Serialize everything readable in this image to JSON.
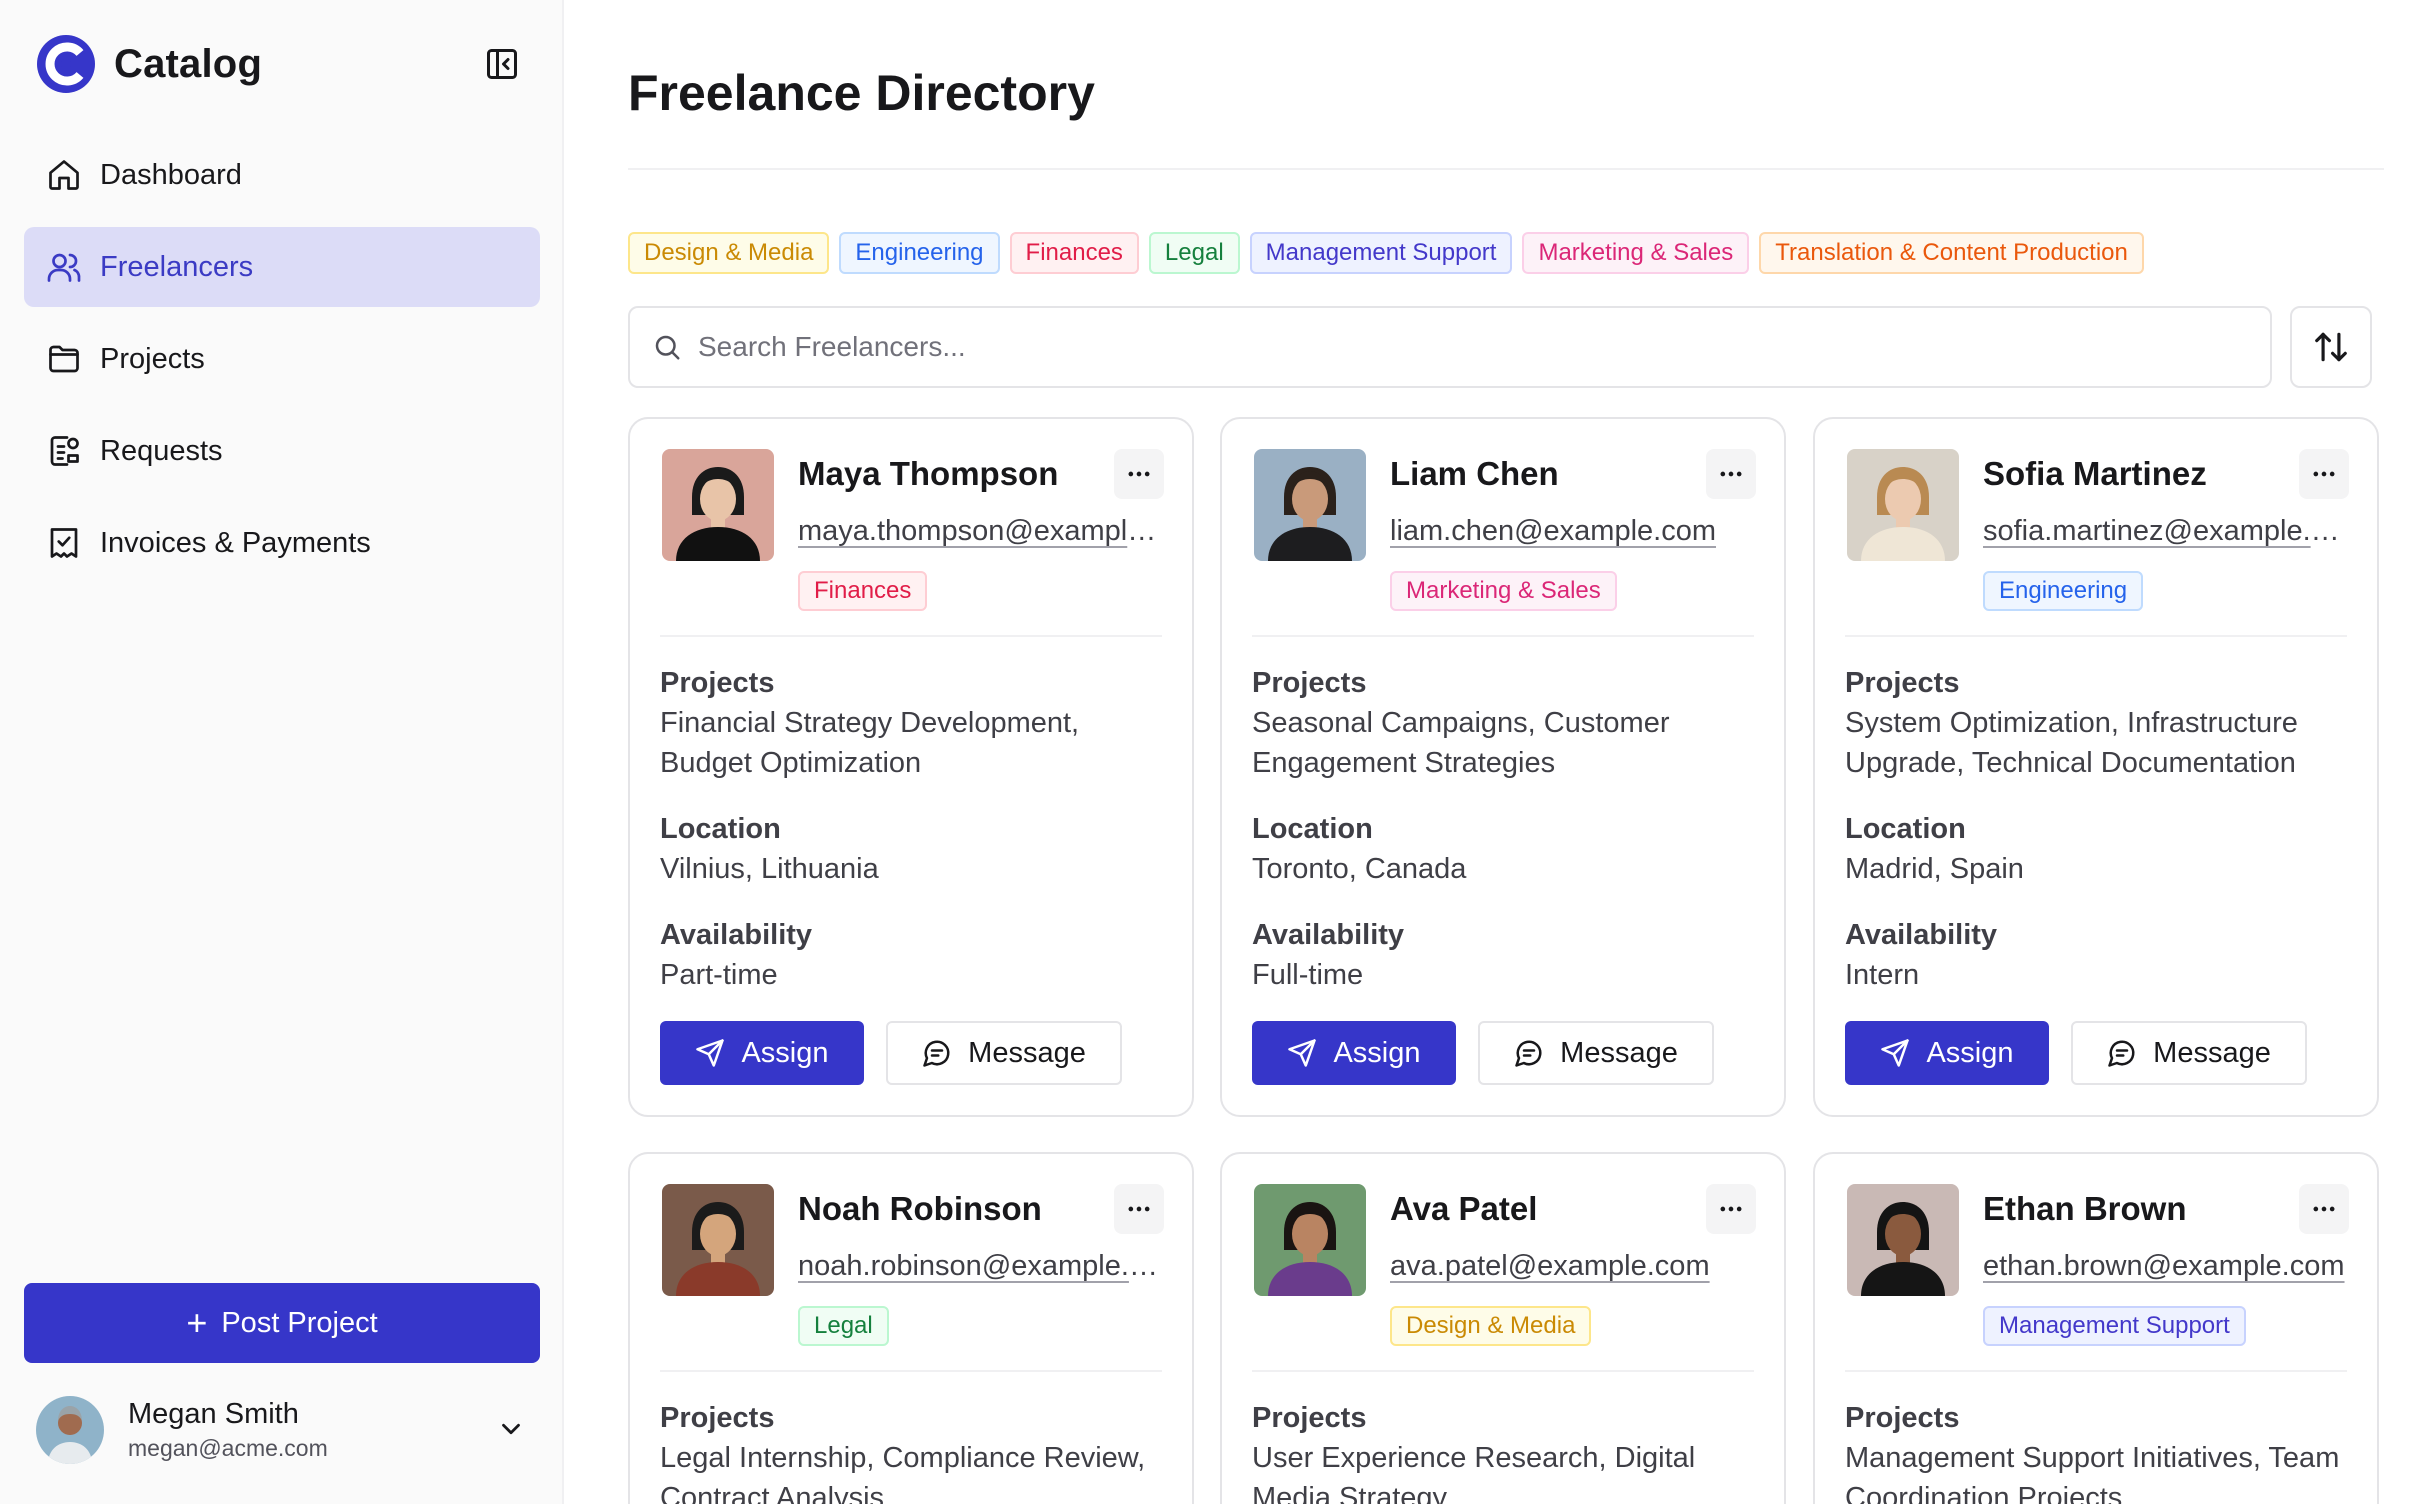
{
  "app": {
    "name": "Catalog"
  },
  "sidebar": {
    "items": [
      {
        "label": "Dashboard",
        "icon": "home-icon",
        "active": false
      },
      {
        "label": "Freelancers",
        "icon": "users-icon",
        "active": true
      },
      {
        "label": "Projects",
        "icon": "folder-icon",
        "active": false
      },
      {
        "label": "Requests",
        "icon": "request-icon",
        "active": false
      },
      {
        "label": "Invoices & Payments",
        "icon": "receipt-icon",
        "active": false
      }
    ],
    "post_button": "Post Project",
    "user": {
      "name": "Megan Smith",
      "email": "megan@acme.com"
    }
  },
  "main": {
    "title": "Freelance Directory",
    "filters": [
      {
        "label": "Design & Media",
        "color": "#ca8a04",
        "border": "#fde68a",
        "bg": "#fefce8"
      },
      {
        "label": "Engineering",
        "color": "#2563eb",
        "border": "#bfdbfe",
        "bg": "#eff6ff"
      },
      {
        "label": "Finances",
        "color": "#e11d48",
        "border": "#fecdd3",
        "bg": "#fff1f2"
      },
      {
        "label": "Legal",
        "color": "#15803d",
        "border": "#bbf7d0",
        "bg": "#f0fdf4"
      },
      {
        "label": "Management Support",
        "color": "#4338ca",
        "border": "#c7d2fe",
        "bg": "#eef2ff"
      },
      {
        "label": "Marketing & Sales",
        "color": "#db2777",
        "border": "#fbcfe8",
        "bg": "#fdf2f8"
      },
      {
        "label": "Translation & Content Production",
        "color": "#ea580c",
        "border": "#fed7aa",
        "bg": "#fff7ed"
      }
    ],
    "search": {
      "placeholder": "Search Freelancers..."
    },
    "labels": {
      "projects": "Projects",
      "location": "Location",
      "availability": "Availability",
      "assign": "Assign",
      "message": "Message"
    },
    "freelancers": [
      {
        "name": "Maya Thompson",
        "email": "maya.thompson@example.com",
        "category": "Finances",
        "projects": "Financial Strategy Development, Budget Optimization",
        "location": "Vilnius, Lithuania",
        "availability": "Part-time"
      },
      {
        "name": "Liam Chen",
        "email": "liam.chen@example.com",
        "category": "Marketing & Sales",
        "projects": "Seasonal Campaigns, Customer Engagement Strategies",
        "location": "Toronto, Canada",
        "availability": "Full-time"
      },
      {
        "name": "Sofia Martinez",
        "email": "sofia.martinez@example.com",
        "category": "Engineering",
        "projects": "System Optimization, Infrastructure Upgrade, Technical Documentation",
        "location": "Madrid, Spain",
        "availability": "Intern"
      },
      {
        "name": "Noah Robinson",
        "email": "noah.robinson@example.com",
        "category": "Legal",
        "projects": "Legal Internship, Compliance Review, Contract Analysis"
      },
      {
        "name": "Ava Patel",
        "email": "ava.patel@example.com",
        "category": "Design & Media",
        "projects": "User Experience Research, Digital Media Strategy"
      },
      {
        "name": "Ethan Brown",
        "email": "ethan.brown@example.com",
        "category": "Management Support",
        "projects": "Management Support Initiatives, Team Coordination Projects"
      }
    ]
  }
}
